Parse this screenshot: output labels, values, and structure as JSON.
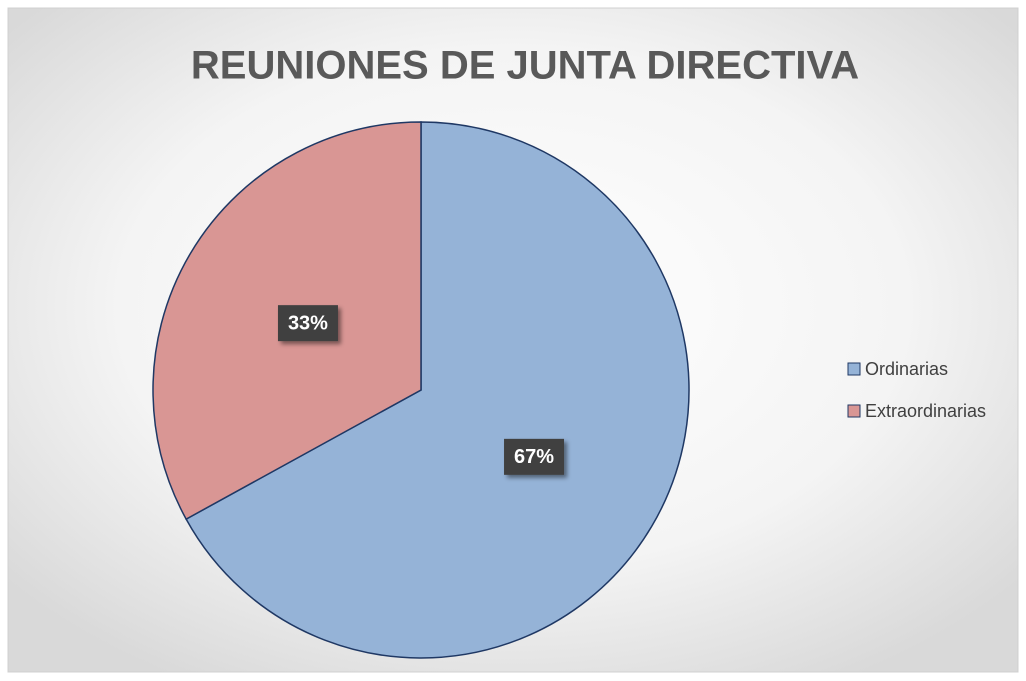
{
  "chart_data": {
    "type": "pie",
    "title": "REUNIONES DE JUNTA DIRECTIVA",
    "categories": [
      "Ordinarias",
      "Extraordinarias"
    ],
    "values": [
      67,
      33
    ],
    "value_labels": [
      "67%",
      "33%"
    ],
    "colors": [
      "#95b3d7",
      "#d99694"
    ],
    "legend": "right"
  }
}
